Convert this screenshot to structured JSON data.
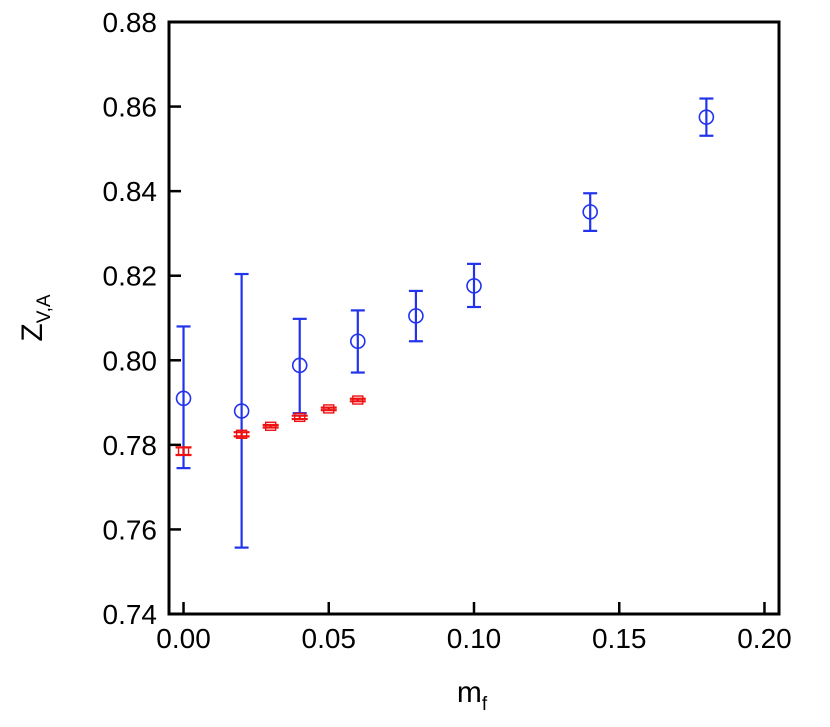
{
  "chart_data": {
    "type": "scatter",
    "title": "",
    "xlabel": "m",
    "xlabel_sub": "f",
    "ylabel": "Z",
    "ylabel_sub": "V,A",
    "xlim": [
      -0.005,
      0.205
    ],
    "ylim": [
      0.74,
      0.88
    ],
    "xticks": [
      0.0,
      0.05,
      0.1,
      0.15,
      0.2
    ],
    "xtick_labels": [
      "0.00",
      "0.05",
      "0.10",
      "0.15",
      "0.20"
    ],
    "yticks": [
      0.74,
      0.76,
      0.78,
      0.8,
      0.82,
      0.84,
      0.86,
      0.88
    ],
    "ytick_labels": [
      "0.74",
      "0.76",
      "0.78",
      "0.80",
      "0.82",
      "0.84",
      "0.86",
      "0.88"
    ],
    "grid": false,
    "series": [
      {
        "color": "#2233ee",
        "marker": "open-circle",
        "points": [
          {
            "x": 0.0,
            "y": 0.791,
            "err_low": 0.7745,
            "err_high": 0.808
          },
          {
            "x": 0.02,
            "y": 0.788,
            "err_low": 0.7557,
            "err_high": 0.8204
          },
          {
            "x": 0.04,
            "y": 0.7988,
            "err_low": 0.7875,
            "err_high": 0.8098
          },
          {
            "x": 0.06,
            "y": 0.8045,
            "err_low": 0.7971,
            "err_high": 0.8118
          },
          {
            "x": 0.08,
            "y": 0.8105,
            "err_low": 0.8045,
            "err_high": 0.8164
          },
          {
            "x": 0.1,
            "y": 0.8176,
            "err_low": 0.8126,
            "err_high": 0.8228
          },
          {
            "x": 0.14,
            "y": 0.8351,
            "err_low": 0.8306,
            "err_high": 0.8395
          },
          {
            "x": 0.18,
            "y": 0.8575,
            "err_low": 0.8531,
            "err_high": 0.8619
          }
        ]
      },
      {
        "color": "#ee1111",
        "marker": "open-square",
        "points": [
          {
            "x": 0.0,
            "y": 0.7785,
            "err_low": 0.7776,
            "err_high": 0.7794
          },
          {
            "x": 0.02,
            "y": 0.7825,
            "err_low": 0.782,
            "err_high": 0.783
          },
          {
            "x": 0.03,
            "y": 0.7844,
            "err_low": 0.7841,
            "err_high": 0.7847
          },
          {
            "x": 0.04,
            "y": 0.7865,
            "err_low": 0.7861,
            "err_high": 0.7869
          },
          {
            "x": 0.05,
            "y": 0.7885,
            "err_low": 0.7882,
            "err_high": 0.7888
          },
          {
            "x": 0.06,
            "y": 0.7906,
            "err_low": 0.7903,
            "err_high": 0.7909
          }
        ]
      }
    ]
  }
}
